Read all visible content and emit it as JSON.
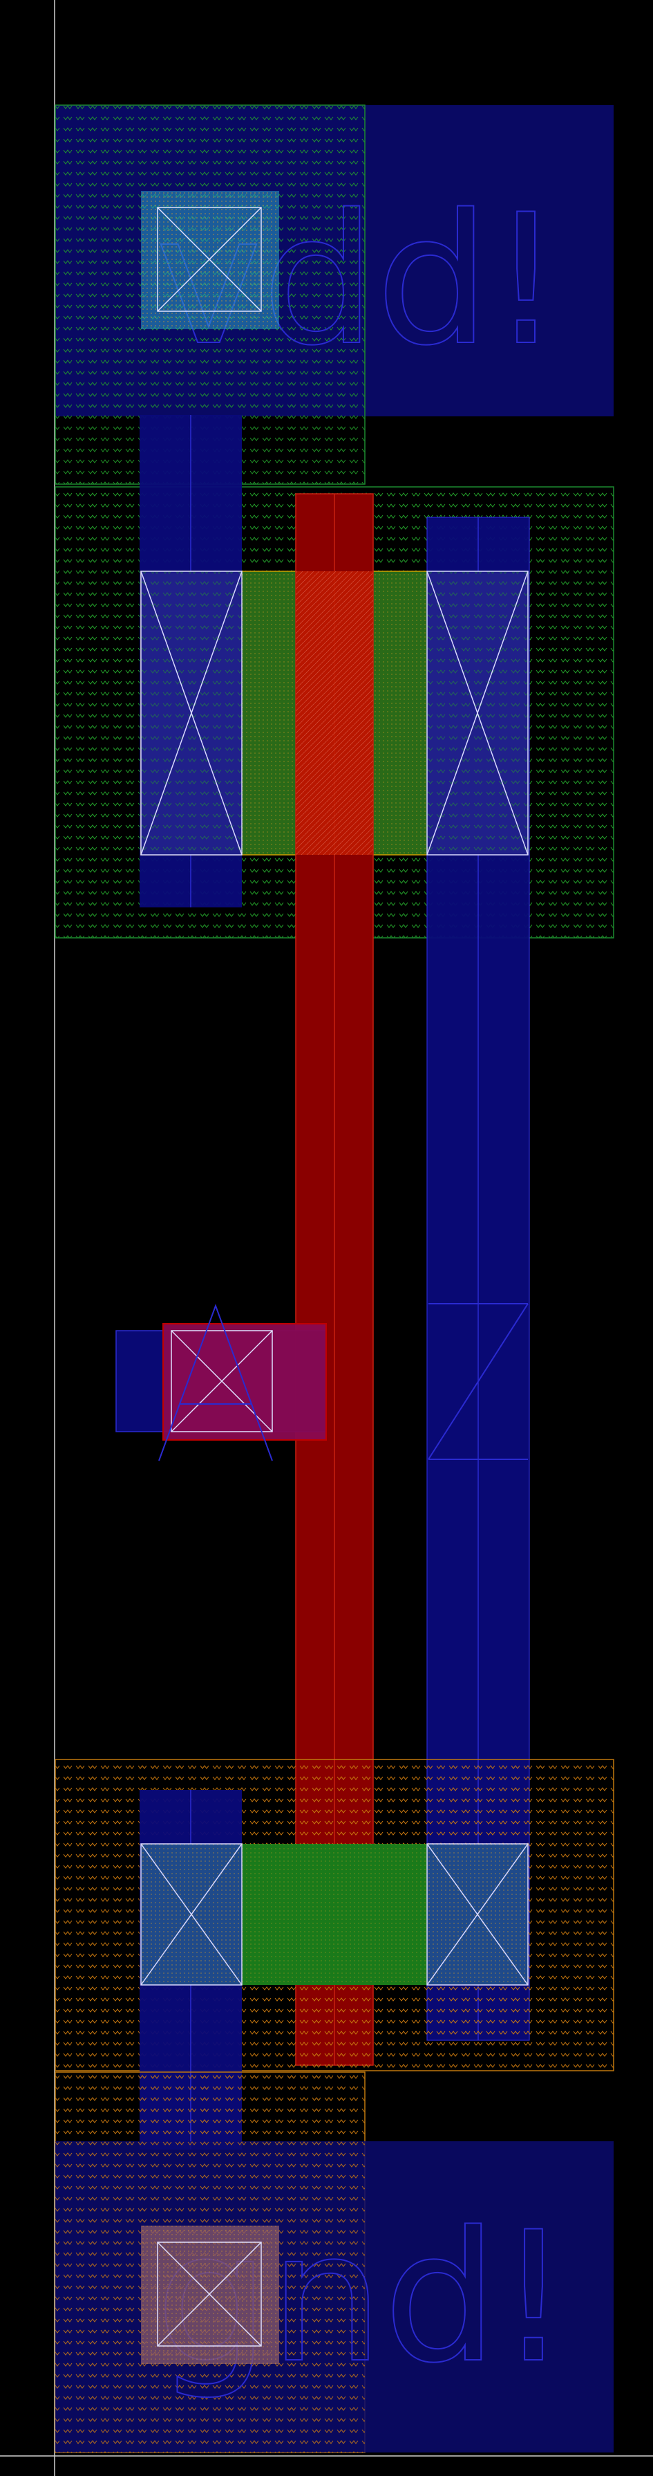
{
  "canvas": {
    "background": "#000000",
    "axis_color": "#d0d0d0"
  },
  "labels": {
    "top_rail": "vdd!",
    "bottom_rail": "gnd!"
  },
  "layer_colors": {
    "metal1_fill": "#0a0a7a",
    "metal1_line": "#2a2ad0",
    "nwell_line": "#1f8a3a",
    "pwell_line": "#c06a10",
    "poly_fill": "#b01000",
    "poly_dark": "#7a0000",
    "diff_green": "#1a8a1a",
    "diff_orange": "#a07a00",
    "contact_line": "#d8d8ff",
    "via_fill": "#8a1060",
    "tap_cyan": "#4ab0d0",
    "tap_tan": "#b07a70"
  }
}
